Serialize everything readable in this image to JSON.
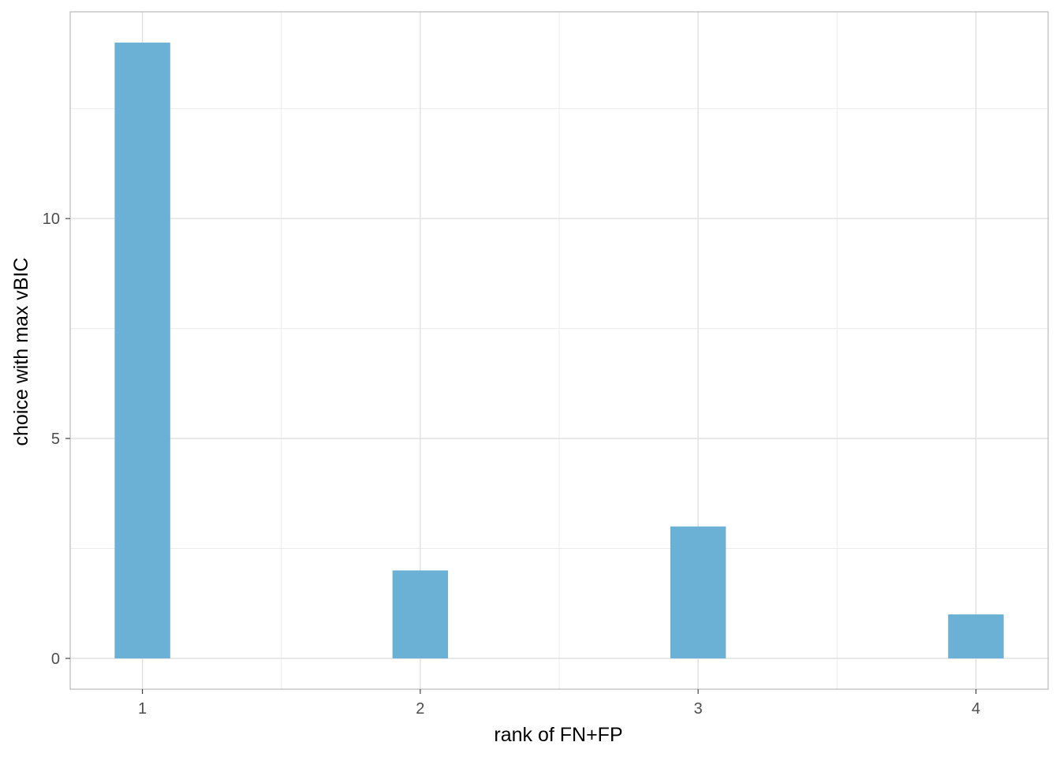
{
  "chart_data": {
    "type": "bar",
    "title": "",
    "xlabel": "rank of FN+FP",
    "ylabel": "choice with max vBIC",
    "x": [
      1,
      2,
      3,
      4
    ],
    "values": [
      14,
      2,
      3,
      1
    ],
    "xlim": [
      0.74,
      4.26
    ],
    "ylim": [
      -0.7,
      14.7
    ],
    "x_ticks": [
      "1",
      "2",
      "3",
      "4"
    ],
    "y_ticks": [
      "0",
      "5",
      "10"
    ],
    "bar_width": 0.2,
    "bar_color": "#6BB1D6",
    "grid": true,
    "legend": "none"
  }
}
